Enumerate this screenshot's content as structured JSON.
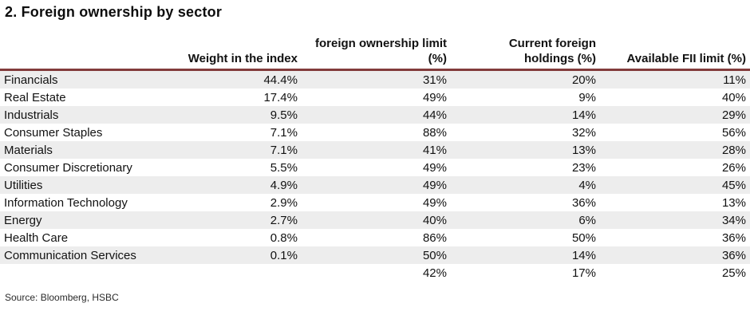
{
  "figure_title": "2. Foreign ownership by sector",
  "colors": {
    "header_rule": "#823b3b",
    "stripe": "#ededed"
  },
  "header_lines": {
    "col1": "Weight in the index",
    "col2a": "foreign ownership limit",
    "col2b": "(%)",
    "col3a": "Current foreign",
    "col3b": "holdings (%)",
    "col4": "Available FII limit (%)"
  },
  "chart_data": {
    "type": "table",
    "title": "2. Foreign ownership by sector",
    "columns": [
      "",
      "Weight in the index",
      "foreign ownership limit (%)",
      "Current foreign holdings (%)",
      "Available FII limit (%)"
    ],
    "rows": [
      {
        "sector": "Financials",
        "weight": "44.4%",
        "limit": "31%",
        "current": "20%",
        "available": "11%"
      },
      {
        "sector": "Real Estate",
        "weight": "17.4%",
        "limit": "49%",
        "current": "9%",
        "available": "40%"
      },
      {
        "sector": "Industrials",
        "weight": "9.5%",
        "limit": "44%",
        "current": "14%",
        "available": "29%"
      },
      {
        "sector": "Consumer Staples",
        "weight": "7.1%",
        "limit": "88%",
        "current": "32%",
        "available": "56%"
      },
      {
        "sector": "Materials",
        "weight": "7.1%",
        "limit": "41%",
        "current": "13%",
        "available": "28%"
      },
      {
        "sector": "Consumer Discretionary",
        "weight": "5.5%",
        "limit": "49%",
        "current": "23%",
        "available": "26%"
      },
      {
        "sector": "Utilities",
        "weight": "4.9%",
        "limit": "49%",
        "current": "4%",
        "available": "45%"
      },
      {
        "sector": "Information Technology",
        "weight": "2.9%",
        "limit": "49%",
        "current": "36%",
        "available": "13%"
      },
      {
        "sector": "Energy",
        "weight": "2.7%",
        "limit": "40%",
        "current": "6%",
        "available": "34%"
      },
      {
        "sector": "Health Care",
        "weight": "0.8%",
        "limit": "86%",
        "current": "50%",
        "available": "36%"
      },
      {
        "sector": "Communication Services",
        "weight": "0.1%",
        "limit": "50%",
        "current": "14%",
        "available": "36%"
      }
    ],
    "total_row": {
      "sector": "",
      "weight": "",
      "limit": "42%",
      "current": "17%",
      "available": "25%"
    },
    "source": "Source: Bloomberg, HSBC",
    "layout": {
      "grid": "row-stripes",
      "stripe_start": "first-row",
      "value_alignment": "right"
    }
  }
}
